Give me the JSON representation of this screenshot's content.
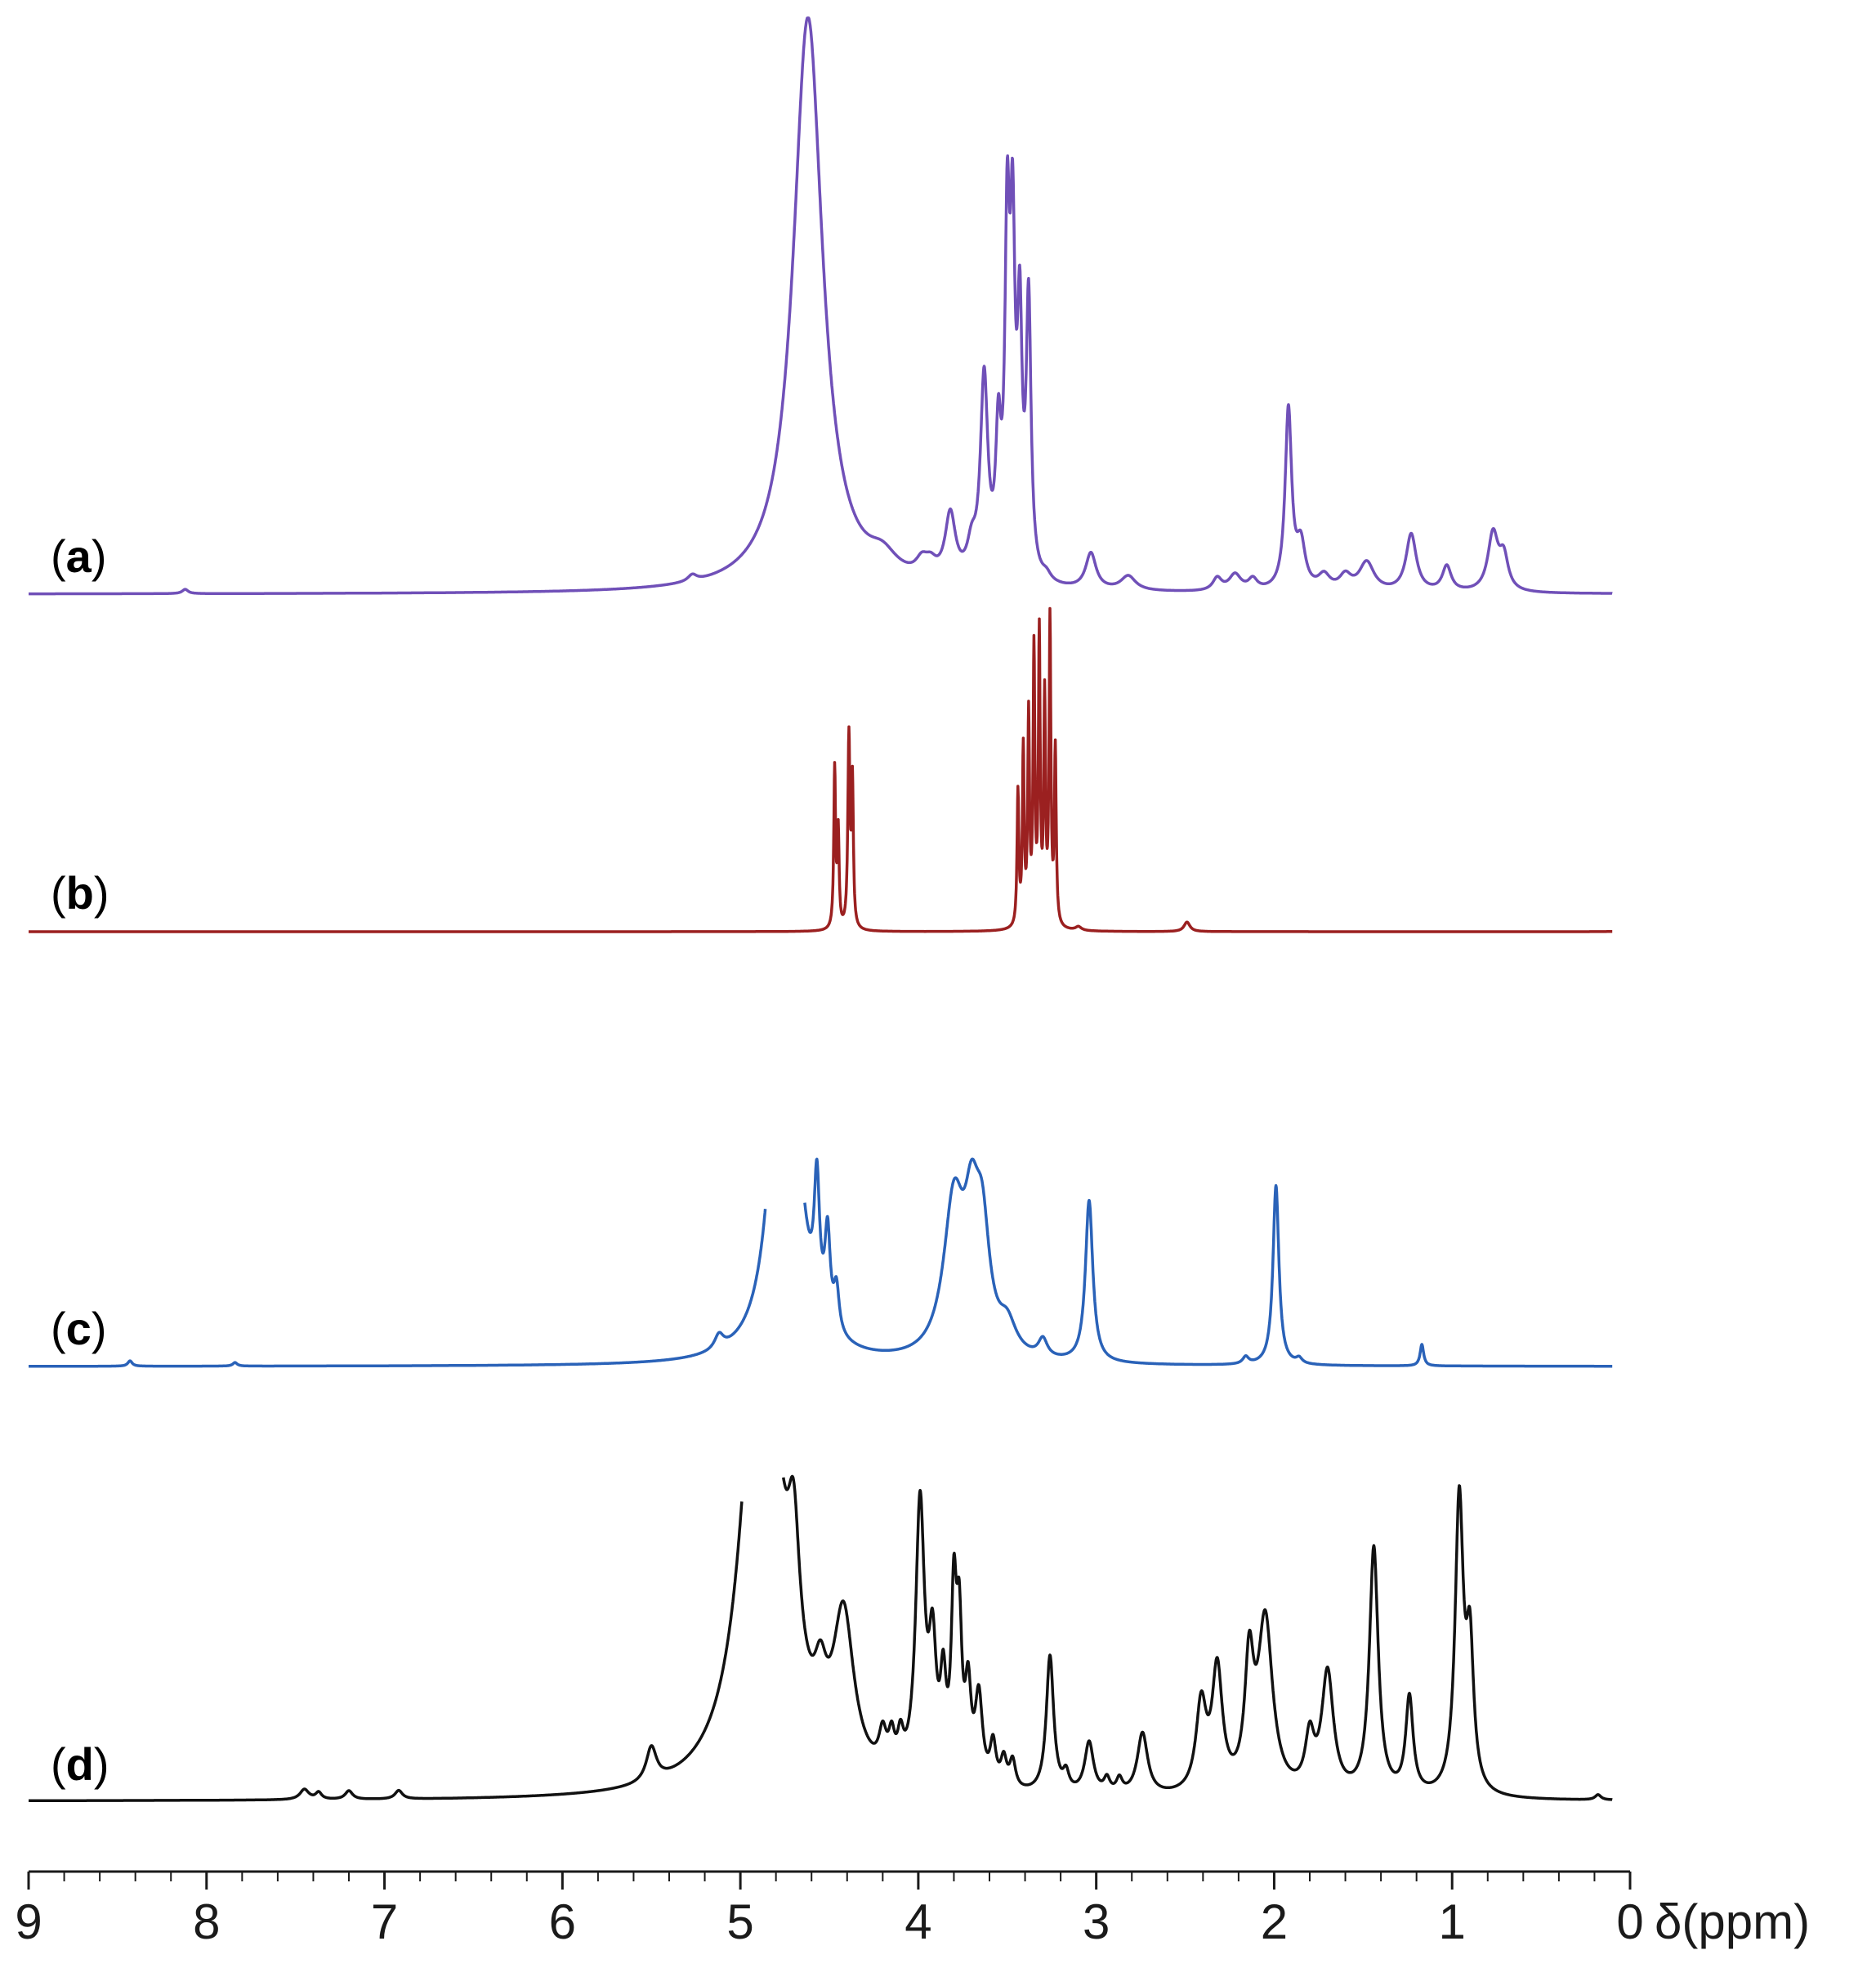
{
  "chart_data": {
    "type": "line",
    "xlabel": "δ(ppm)",
    "xlim": [
      9,
      0
    ],
    "x_reversed": true,
    "x_ticks": [
      {
        "value": 9,
        "label": "9"
      },
      {
        "value": 8,
        "label": "8"
      },
      {
        "value": 7,
        "label": "7"
      },
      {
        "value": 6,
        "label": "6"
      },
      {
        "value": 5,
        "label": "5"
      },
      {
        "value": 4,
        "label": "4"
      },
      {
        "value": 3,
        "label": "3"
      },
      {
        "value": 2,
        "label": "2"
      },
      {
        "value": 1,
        "label": "1"
      },
      {
        "value": 0,
        "label": "0"
      }
    ],
    "minor_ticks_per_major": 4,
    "series": [
      {
        "label_open": "(",
        "label_letter": "a",
        "label_close": ")",
        "color": "#7050b8",
        "x_range": [
          9.0,
          0.1
        ],
        "peaks": [
          {
            "ppm": 8.12,
            "h": 0.012,
            "w": 0.02
          },
          {
            "ppm": 5.27,
            "h": 0.018,
            "w": 0.03
          },
          {
            "ppm": 4.62,
            "h": 1.6,
            "w": 0.1
          },
          {
            "ppm": 4.2,
            "h": 0.055,
            "w": 0.1
          },
          {
            "ppm": 3.98,
            "h": 0.04,
            "w": 0.04
          },
          {
            "ppm": 3.93,
            "h": 0.035,
            "w": 0.04
          },
          {
            "ppm": 3.82,
            "h": 0.18,
            "w": 0.035
          },
          {
            "ppm": 3.7,
            "h": 0.08,
            "w": 0.03
          },
          {
            "ppm": 3.63,
            "h": 0.55,
            "w": 0.025
          },
          {
            "ppm": 3.55,
            "h": 0.35,
            "w": 0.018
          },
          {
            "ppm": 3.5,
            "h": 0.9,
            "w": 0.016
          },
          {
            "ppm": 3.47,
            "h": 0.85,
            "w": 0.016
          },
          {
            "ppm": 3.43,
            "h": 0.65,
            "w": 0.016
          },
          {
            "ppm": 3.38,
            "h": 0.75,
            "w": 0.016
          },
          {
            "ppm": 3.28,
            "h": 0.02,
            "w": 0.03
          },
          {
            "ppm": 3.03,
            "h": 0.1,
            "w": 0.035
          },
          {
            "ppm": 2.82,
            "h": 0.04,
            "w": 0.05
          },
          {
            "ppm": 2.32,
            "h": 0.035,
            "w": 0.03
          },
          {
            "ppm": 2.22,
            "h": 0.045,
            "w": 0.04
          },
          {
            "ppm": 2.12,
            "h": 0.03,
            "w": 0.03
          },
          {
            "ppm": 1.92,
            "h": 0.5,
            "w": 0.022
          },
          {
            "ppm": 1.85,
            "h": 0.12,
            "w": 0.03
          },
          {
            "ppm": 1.72,
            "h": 0.04,
            "w": 0.04
          },
          {
            "ppm": 1.6,
            "h": 0.04,
            "w": 0.04
          },
          {
            "ppm": 1.48,
            "h": 0.08,
            "w": 0.05
          },
          {
            "ppm": 1.23,
            "h": 0.16,
            "w": 0.035
          },
          {
            "ppm": 1.03,
            "h": 0.07,
            "w": 0.03
          },
          {
            "ppm": 0.77,
            "h": 0.16,
            "w": 0.035
          },
          {
            "ppm": 0.71,
            "h": 0.09,
            "w": 0.03
          }
        ]
      },
      {
        "label_open": "(",
        "label_letter": "b",
        "label_close": ")",
        "color": "#9b2020",
        "x_range": [
          9.0,
          0.1
        ],
        "peaks": [
          {
            "ppm": 4.47,
            "h": 0.5,
            "w": 0.006
          },
          {
            "ppm": 4.45,
            "h": 0.3,
            "w": 0.006
          },
          {
            "ppm": 4.39,
            "h": 0.6,
            "w": 0.007
          },
          {
            "ppm": 4.37,
            "h": 0.45,
            "w": 0.006
          },
          {
            "ppm": 3.44,
            "h": 0.42,
            "w": 0.006
          },
          {
            "ppm": 3.41,
            "h": 0.55,
            "w": 0.006
          },
          {
            "ppm": 3.38,
            "h": 0.65,
            "w": 0.006
          },
          {
            "ppm": 3.35,
            "h": 0.85,
            "w": 0.006
          },
          {
            "ppm": 3.32,
            "h": 0.9,
            "w": 0.006
          },
          {
            "ppm": 3.29,
            "h": 0.7,
            "w": 0.006
          },
          {
            "ppm": 3.26,
            "h": 0.95,
            "w": 0.006
          },
          {
            "ppm": 3.23,
            "h": 0.55,
            "w": 0.006
          },
          {
            "ppm": 3.1,
            "h": 0.012,
            "w": 0.02
          },
          {
            "ppm": 2.49,
            "h": 0.03,
            "w": 0.02
          },
          {
            "ppm": 0.03,
            "h": 0.01,
            "w": 0.02
          }
        ]
      },
      {
        "label_open": "(",
        "label_letter": "c",
        "label_close": ")",
        "color": "#2a62b8",
        "x_range": [
          9.0,
          0.1
        ],
        "gap": [
          4.86,
          4.64
        ],
        "peaks": [
          {
            "ppm": 8.43,
            "h": 0.015,
            "w": 0.015
          },
          {
            "ppm": 7.84,
            "h": 0.01,
            "w": 0.015
          },
          {
            "ppm": 5.12,
            "h": 0.04,
            "w": 0.03
          },
          {
            "ppm": 4.75,
            "h": 1.5,
            "w": 0.07
          },
          {
            "ppm": 4.57,
            "h": 0.35,
            "w": 0.018
          },
          {
            "ppm": 4.51,
            "h": 0.25,
            "w": 0.018
          },
          {
            "ppm": 4.46,
            "h": 0.12,
            "w": 0.018
          },
          {
            "ppm": 3.8,
            "h": 0.42,
            "w": 0.07
          },
          {
            "ppm": 3.7,
            "h": 0.3,
            "w": 0.05
          },
          {
            "ppm": 3.64,
            "h": 0.3,
            "w": 0.05
          },
          {
            "ppm": 3.5,
            "h": 0.08,
            "w": 0.06
          },
          {
            "ppm": 3.3,
            "h": 0.05,
            "w": 0.03
          },
          {
            "ppm": 3.04,
            "h": 0.45,
            "w": 0.025
          },
          {
            "ppm": 2.16,
            "h": 0.02,
            "w": 0.02
          },
          {
            "ppm": 1.99,
            "h": 0.5,
            "w": 0.02
          },
          {
            "ppm": 1.86,
            "h": 0.015,
            "w": 0.02
          },
          {
            "ppm": 1.17,
            "h": 0.06,
            "w": 0.012
          }
        ]
      },
      {
        "label_open": "(",
        "label_letter": "d",
        "label_close": ")",
        "color": "#111111",
        "x_range": [
          9.0,
          0.1
        ],
        "gap": [
          4.99,
          4.76
        ],
        "peaks": [
          {
            "ppm": 7.45,
            "h": 0.03,
            "w": 0.03
          },
          {
            "ppm": 7.37,
            "h": 0.02,
            "w": 0.02
          },
          {
            "ppm": 7.2,
            "h": 0.025,
            "w": 0.025
          },
          {
            "ppm": 6.92,
            "h": 0.025,
            "w": 0.025
          },
          {
            "ppm": 5.5,
            "h": 0.1,
            "w": 0.035
          },
          {
            "ppm": 4.88,
            "h": 1.6,
            "w": 0.12
          },
          {
            "ppm": 4.7,
            "h": 0.4,
            "w": 0.04
          },
          {
            "ppm": 4.55,
            "h": 0.15,
            "w": 0.04
          },
          {
            "ppm": 4.42,
            "h": 0.45,
            "w": 0.07
          },
          {
            "ppm": 4.2,
            "h": 0.1,
            "w": 0.025
          },
          {
            "ppm": 4.15,
            "h": 0.09,
            "w": 0.02
          },
          {
            "ppm": 4.1,
            "h": 0.09,
            "w": 0.02
          },
          {
            "ppm": 3.99,
            "h": 0.8,
            "w": 0.03
          },
          {
            "ppm": 3.92,
            "h": 0.35,
            "w": 0.025
          },
          {
            "ppm": 3.86,
            "h": 0.25,
            "w": 0.02
          },
          {
            "ppm": 3.8,
            "h": 0.5,
            "w": 0.018
          },
          {
            "ppm": 3.77,
            "h": 0.4,
            "w": 0.018
          },
          {
            "ppm": 3.72,
            "h": 0.25,
            "w": 0.02
          },
          {
            "ppm": 3.66,
            "h": 0.25,
            "w": 0.025
          },
          {
            "ppm": 3.58,
            "h": 0.12,
            "w": 0.02
          },
          {
            "ppm": 3.52,
            "h": 0.08,
            "w": 0.02
          },
          {
            "ppm": 3.47,
            "h": 0.08,
            "w": 0.02
          },
          {
            "ppm": 3.26,
            "h": 0.4,
            "w": 0.025
          },
          {
            "ppm": 3.17,
            "h": 0.05,
            "w": 0.02
          },
          {
            "ppm": 3.04,
            "h": 0.15,
            "w": 0.03
          },
          {
            "ppm": 2.94,
            "h": 0.04,
            "w": 0.02
          },
          {
            "ppm": 2.87,
            "h": 0.04,
            "w": 0.02
          },
          {
            "ppm": 2.74,
            "h": 0.18,
            "w": 0.035
          },
          {
            "ppm": 2.41,
            "h": 0.25,
            "w": 0.035
          },
          {
            "ppm": 2.32,
            "h": 0.35,
            "w": 0.035
          },
          {
            "ppm": 2.14,
            "h": 0.35,
            "w": 0.03
          },
          {
            "ppm": 2.05,
            "h": 0.5,
            "w": 0.05
          },
          {
            "ppm": 1.8,
            "h": 0.15,
            "w": 0.03
          },
          {
            "ppm": 1.7,
            "h": 0.35,
            "w": 0.04
          },
          {
            "ppm": 1.44,
            "h": 0.72,
            "w": 0.03
          },
          {
            "ppm": 1.24,
            "h": 0.28,
            "w": 0.025
          },
          {
            "ppm": 0.96,
            "h": 0.85,
            "w": 0.028
          },
          {
            "ppm": 0.9,
            "h": 0.4,
            "w": 0.025
          },
          {
            "ppm": 0.18,
            "h": 0.015,
            "w": 0.02
          }
        ]
      }
    ]
  }
}
